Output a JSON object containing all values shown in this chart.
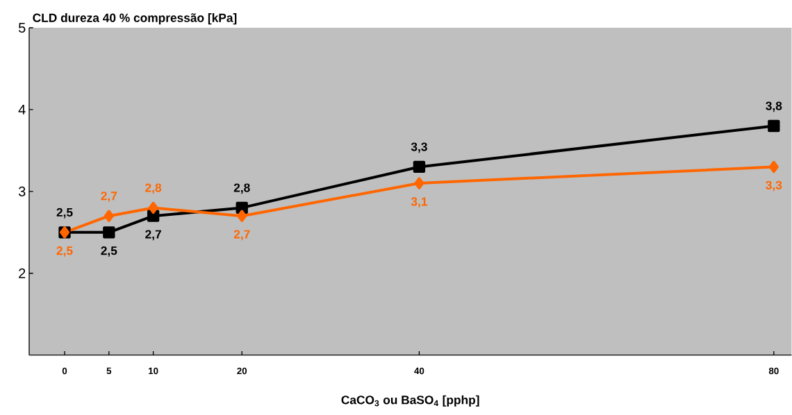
{
  "chart_data": {
    "type": "line",
    "title": "CLD dureza 40 % compressão [kPa]",
    "xlabel": "CaCO$_{3}$ ou BaSO$_{4}$ [pphp]",
    "x": [
      0,
      5,
      10,
      20,
      40,
      80
    ],
    "series": [
      {
        "color": "#000000",
        "marker": "square",
        "values": [
          2.5,
          2.5,
          2.7,
          2.8,
          3.3,
          3.8
        ],
        "value_labels": [
          "2,5",
          "2,5",
          "2,7",
          "2,8",
          "3,3",
          "3,8"
        ]
      },
      {
        "color": "#ff6600",
        "marker": "diamond",
        "values": [
          2.5,
          2.7,
          2.8,
          2.7,
          3.1,
          3.3
        ],
        "value_labels": [
          "2,5",
          "2,7",
          "2,8",
          "2,7",
          "3,1",
          "3,3"
        ]
      }
    ],
    "xlim": [
      -4,
      82
    ],
    "ylim": [
      1,
      5
    ],
    "xticks": [
      0,
      5,
      10,
      20,
      40,
      80
    ],
    "yticks": [
      2,
      3,
      4,
      5
    ],
    "grid": false,
    "line_style": "solid"
  }
}
